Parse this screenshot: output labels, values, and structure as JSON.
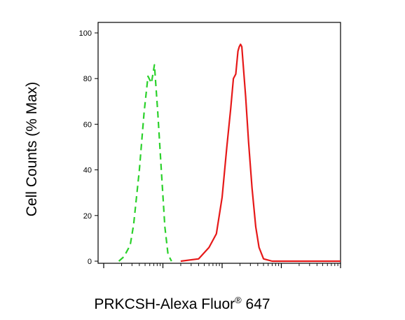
{
  "chart_data": {
    "type": "line",
    "xlabel": "PRKCSH-Alexa Fluor",
    "xlabel_superscript": "®",
    "xlabel_suffix": " 647",
    "ylabel": "Cell Counts (% Max)",
    "x_scale": "log",
    "xlim": [
      10,
      100000
    ],
    "ylim": [
      0,
      100
    ],
    "y_ticks": [
      0,
      20,
      40,
      60,
      80,
      100
    ],
    "x_ticks_labeled": [],
    "grid": false,
    "series": [
      {
        "color": "#2bd12b",
        "dash": "dashed",
        "points": [
          [
            18,
            0
          ],
          [
            22,
            2
          ],
          [
            28,
            7
          ],
          [
            32,
            16
          ],
          [
            40,
            40
          ],
          [
            48,
            65
          ],
          [
            56,
            81
          ],
          [
            64,
            78
          ],
          [
            72,
            86
          ],
          [
            82,
            65
          ],
          [
            95,
            38
          ],
          [
            108,
            15
          ],
          [
            122,
            3
          ],
          [
            140,
            0
          ]
        ]
      },
      {
        "color": "#e61919",
        "dash": "solid",
        "points": [
          [
            200,
            0
          ],
          [
            400,
            1
          ],
          [
            600,
            6
          ],
          [
            800,
            12
          ],
          [
            1000,
            28
          ],
          [
            1200,
            50
          ],
          [
            1400,
            67
          ],
          [
            1550,
            80
          ],
          [
            1700,
            82
          ],
          [
            1850,
            92
          ],
          [
            1950,
            94
          ],
          [
            2050,
            95
          ],
          [
            2150,
            94
          ],
          [
            2300,
            84
          ],
          [
            2500,
            72
          ],
          [
            2800,
            52
          ],
          [
            3200,
            32
          ],
          [
            3700,
            15
          ],
          [
            4200,
            6
          ],
          [
            5000,
            1
          ],
          [
            7000,
            0
          ],
          [
            15000,
            0
          ],
          [
            100000,
            0
          ]
        ]
      }
    ]
  }
}
